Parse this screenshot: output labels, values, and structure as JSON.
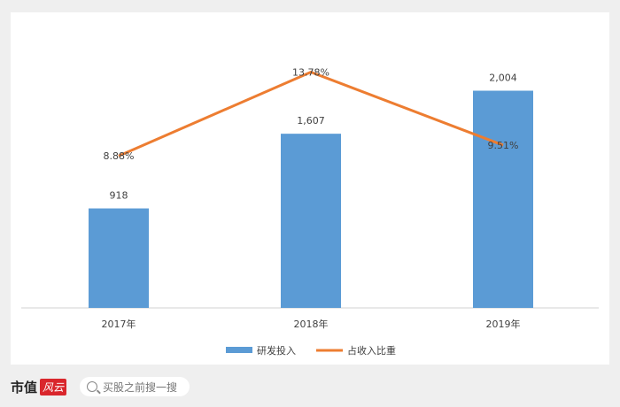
{
  "chart_data": {
    "type": "bar",
    "categories": [
      "2017年",
      "2018年",
      "2019年"
    ],
    "series": [
      {
        "name": "研发投入",
        "type": "bar",
        "color": "#5b9bd5",
        "values": [
          918,
          1607,
          2004
        ],
        "labels": [
          "918",
          "1,607",
          "2,004"
        ]
      },
      {
        "name": "占收入比重",
        "type": "line",
        "color": "#ed7d31",
        "values": [
          8.88,
          13.78,
          9.51
        ],
        "labels": [
          "8.88%",
          "13.78%",
          "9.51%"
        ]
      }
    ],
    "ylim": [
      0,
      2400
    ],
    "y2lim": [
      0,
      15.2
    ],
    "grid": false,
    "legend": "bottom"
  },
  "footer": {
    "logo_text": "市值",
    "logo_stamp": "风云",
    "search_placeholder": "买股之前搜一搜"
  }
}
